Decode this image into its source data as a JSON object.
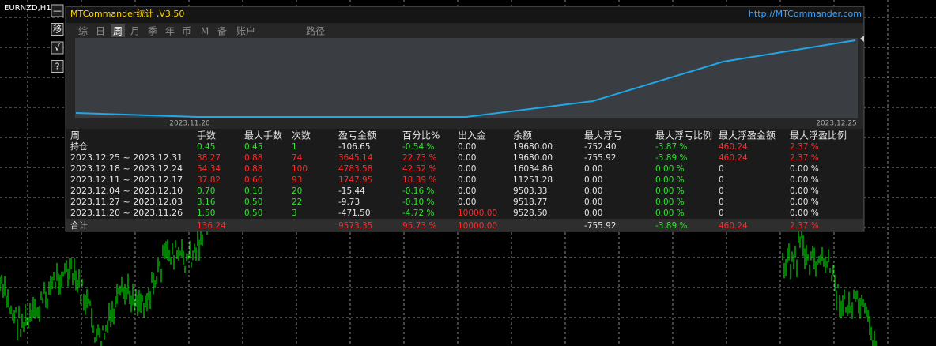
{
  "symbol_label": "EURNZD,H1",
  "toolbar": [
    "—",
    "移",
    "√",
    "?"
  ],
  "panel": {
    "title": "MTCommander统计 ,V3.50",
    "link": "http://MTCommander.com",
    "tabs": [
      "综",
      "日",
      "周",
      "月",
      "季",
      "年",
      "币",
      "M",
      "备",
      "账户",
      "路径"
    ],
    "selected_tab": 2,
    "chart_labels": [
      "2023.11.20",
      "2023.12.25"
    ]
  },
  "table": {
    "headers": [
      "周",
      "手数",
      "最大手数",
      "次数",
      "盈亏金额",
      "百分比%",
      "出入金",
      "余额",
      "最大浮亏",
      "最大浮亏比例",
      "最大浮盈金额",
      "最大浮盈比例"
    ],
    "rows": [
      {
        "cells": [
          "持仓",
          "0.45",
          "0.45",
          "1",
          "-106.65",
          "-0.54 %",
          "0.00",
          "19680.00",
          "-752.40",
          "-3.87 %",
          "460.24",
          "2.37 %"
        ],
        "colors": [
          "#e6e6e6",
          "#33e033",
          "#33e033",
          "#33e033",
          "#e6e6e6",
          "#33e033",
          "#e6e6e6",
          "#e6e6e6",
          "#e6e6e6",
          "#33e033",
          "#ff2a2a",
          "#ff2a2a"
        ]
      },
      {
        "cells": [
          "2023.12.25 ~ 2023.12.31",
          "38.27",
          "0.88",
          "74",
          "3645.14",
          "22.73 %",
          "0.00",
          "19680.00",
          "-755.92",
          "-3.89 %",
          "460.24",
          "2.37 %"
        ],
        "colors": [
          "#e6e6e6",
          "#ff2a2a",
          "#ff2a2a",
          "#ff2a2a",
          "#ff2a2a",
          "#ff2a2a",
          "#e6e6e6",
          "#e6e6e6",
          "#e6e6e6",
          "#33e033",
          "#ff2a2a",
          "#ff2a2a"
        ]
      },
      {
        "cells": [
          "2023.12.18 ~ 2023.12.24",
          "54.34",
          "0.88",
          "100",
          "4783.58",
          "42.52 %",
          "0.00",
          "16034.86",
          "0.00",
          "0.00 %",
          "0",
          "0.00 %"
        ],
        "colors": [
          "#e6e6e6",
          "#ff2a2a",
          "#ff2a2a",
          "#ff2a2a",
          "#ff2a2a",
          "#ff2a2a",
          "#e6e6e6",
          "#e6e6e6",
          "#e6e6e6",
          "#33e033",
          "#e6e6e6",
          "#e6e6e6"
        ]
      },
      {
        "cells": [
          "2023.12.11 ~ 2023.12.17",
          "37.82",
          "0.66",
          "93",
          "1747.95",
          "18.39 %",
          "0.00",
          "11251.28",
          "0.00",
          "0.00 %",
          "0",
          "0.00 %"
        ],
        "colors": [
          "#e6e6e6",
          "#ff2a2a",
          "#ff2a2a",
          "#ff2a2a",
          "#ff2a2a",
          "#ff2a2a",
          "#e6e6e6",
          "#e6e6e6",
          "#e6e6e6",
          "#33e033",
          "#e6e6e6",
          "#e6e6e6"
        ]
      },
      {
        "cells": [
          "2023.12.04 ~ 2023.12.10",
          "0.70",
          "0.10",
          "20",
          "-15.44",
          "-0.16 %",
          "0.00",
          "9503.33",
          "0.00",
          "0.00 %",
          "0",
          "0.00 %"
        ],
        "colors": [
          "#e6e6e6",
          "#33e033",
          "#33e033",
          "#33e033",
          "#e6e6e6",
          "#33e033",
          "#e6e6e6",
          "#e6e6e6",
          "#e6e6e6",
          "#33e033",
          "#e6e6e6",
          "#e6e6e6"
        ]
      },
      {
        "cells": [
          "2023.11.27 ~ 2023.12.03",
          "3.16",
          "0.50",
          "22",
          "-9.73",
          "-0.10 %",
          "0.00",
          "9518.77",
          "0.00",
          "0.00 %",
          "0",
          "0.00 %"
        ],
        "colors": [
          "#e6e6e6",
          "#33e033",
          "#33e033",
          "#33e033",
          "#e6e6e6",
          "#33e033",
          "#e6e6e6",
          "#e6e6e6",
          "#e6e6e6",
          "#33e033",
          "#e6e6e6",
          "#e6e6e6"
        ]
      },
      {
        "cells": [
          "2023.11.20 ~ 2023.11.26",
          "1.50",
          "0.50",
          "3",
          "-471.50",
          "-4.72 %",
          "10000.00",
          "9528.50",
          "0.00",
          "0.00 %",
          "0",
          "0.00 %"
        ],
        "colors": [
          "#e6e6e6",
          "#33e033",
          "#33e033",
          "#33e033",
          "#e6e6e6",
          "#33e033",
          "#ff2a2a",
          "#e6e6e6",
          "#e6e6e6",
          "#33e033",
          "#e6e6e6",
          "#e6e6e6"
        ]
      }
    ],
    "total": {
      "cells": [
        "合计",
        "136.24",
        null,
        null,
        "9573.35",
        "95.73 %",
        "10000.00",
        null,
        "-755.92",
        "-3.89 %",
        "460.24",
        "2.37 %"
      ],
      "colors": [
        "#e6e6e6",
        "#ff2a2a",
        null,
        null,
        "#ff2a2a",
        "#ff2a2a",
        "#ff2a2a",
        null,
        "#e6e6e6",
        "#33e033",
        "#ff2a2a",
        "#ff2a2a"
      ]
    }
  }
}
